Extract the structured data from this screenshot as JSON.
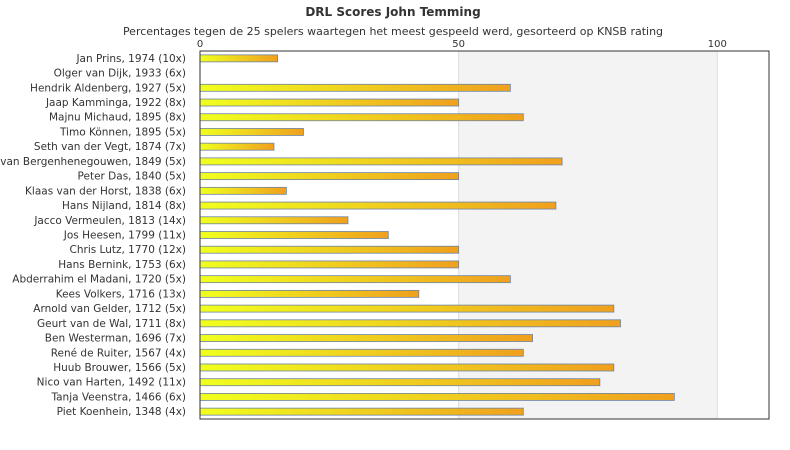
{
  "colors": {
    "bar_start": "#f0ff1e",
    "bar_end": "#f0a01e",
    "bar_stroke": "#6e84a3",
    "band": "#f3f3f3",
    "grid": "#dddddd",
    "frame": "#333333"
  },
  "chart_data": {
    "type": "bar",
    "orientation": "horizontal",
    "title": "DRL Scores John Temming",
    "subtitle": "Percentages tegen de 25 spelers waartegen het meest gespeeld werd, gesorteerd op KNSB rating",
    "xlim": [
      0,
      110
    ],
    "xticks": [
      0,
      50,
      100
    ],
    "grid": true,
    "categories": [
      "Jan Prins, 1974 (10x)",
      "Olger van Dijk, 1933 (6x)",
      "Hendrik Aldenberg, 1927 (5x)",
      "Jaap Kamminga, 1922 (8x)",
      "Majnu Michaud, 1895 (8x)",
      "Timo Können, 1895 (5x)",
      "Seth van der Vegt, 1874 (7x)",
      "van Bergenhenegouwen, 1849 (5x)",
      "Peter Das, 1840 (5x)",
      "Klaas van der Horst, 1838 (6x)",
      "Hans Nijland, 1814 (8x)",
      "Jacco Vermeulen, 1813 (14x)",
      "Jos Heesen, 1799 (11x)",
      "Chris Lutz, 1770 (12x)",
      "Hans Bernink, 1753 (6x)",
      "Abderrahim el Madani, 1720 (5x)",
      "Kees Volkers, 1716 (13x)",
      "Arnold van Gelder, 1712 (5x)",
      "Geurt van de Wal, 1711 (8x)",
      "Ben Westerman, 1696 (7x)",
      "René de Ruiter, 1567 (4x)",
      "Huub Brouwer, 1566 (5x)",
      "Nico van Harten, 1492 (11x)",
      "Tanja Veenstra, 1466 (6x)",
      "Piet Koenhein, 1348 (4x)"
    ],
    "values": [
      15,
      0,
      60,
      50,
      62.5,
      20,
      14.3,
      70,
      50,
      16.7,
      68.8,
      28.6,
      36.4,
      50,
      50,
      60,
      42.3,
      80,
      81.3,
      64.3,
      62.5,
      80,
      77.3,
      91.7,
      62.5
    ]
  }
}
